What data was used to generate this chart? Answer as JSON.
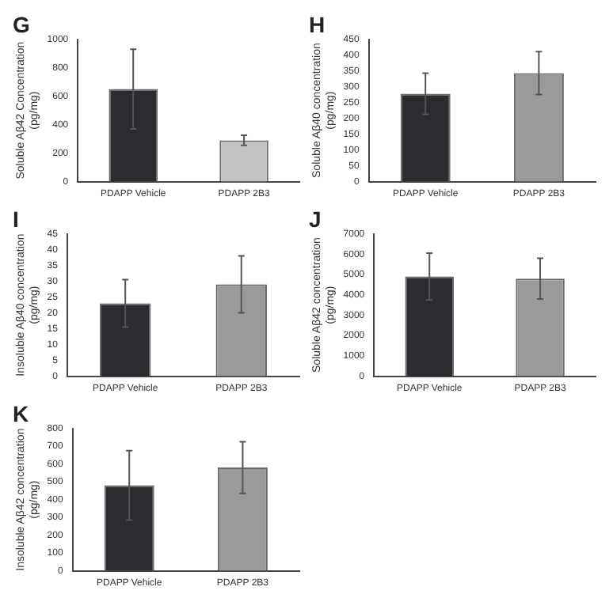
{
  "chart_data": [
    {
      "type": "bar",
      "title": "G",
      "ylabel": "Soluble Aβ42 Concentration (pg/mg)",
      "categories": [
        "PDAPP Vehicle",
        "PDAPP 2B3"
      ],
      "values": [
        650,
        290
      ],
      "errors": [
        280,
        35
      ],
      "colors": [
        "#2b2b30",
        "#c3c3c3"
      ],
      "ylim": [
        0,
        1000
      ],
      "yticks": [
        0,
        200,
        400,
        600,
        800,
        1000
      ],
      "grid": false,
      "legend": false
    },
    {
      "type": "bar",
      "title": "H",
      "ylabel": "Soluble Aβ40 concentration (pg/mg)",
      "categories": [
        "PDAPP Vehicle",
        "PDAPP 2B3"
      ],
      "values": [
        278,
        343
      ],
      "errors": [
        65,
        68
      ],
      "colors": [
        "#2b2b30",
        "#9a9a9a"
      ],
      "ylim": [
        0,
        450
      ],
      "yticks": [
        0,
        50,
        100,
        150,
        200,
        250,
        300,
        350,
        400,
        450
      ],
      "grid": false,
      "legend": false
    },
    {
      "type": "bar",
      "title": "I",
      "ylabel": "Insoluble Aβ40 concentration (pg/mg)",
      "categories": [
        "PDAPP Vehicle",
        "PDAPP 2B3"
      ],
      "values": [
        23,
        29
      ],
      "errors": [
        7.5,
        9
      ],
      "colors": [
        "#2b2b30",
        "#9a9a9a"
      ],
      "ylim": [
        0,
        45
      ],
      "yticks": [
        0,
        5,
        10,
        15,
        20,
        25,
        30,
        35,
        40,
        45
      ],
      "grid": false,
      "legend": false
    },
    {
      "type": "bar",
      "title": "J",
      "ylabel": "Soluble Aβ42 concentration (pg/mg)",
      "categories": [
        "PDAPP Vehicle",
        "PDAPP 2B3"
      ],
      "values": [
        4900,
        4800
      ],
      "errors": [
        1150,
        1000
      ],
      "colors": [
        "#2b2b30",
        "#9a9a9a"
      ],
      "ylim": [
        0,
        7000
      ],
      "yticks": [
        0,
        1000,
        2000,
        3000,
        4000,
        5000,
        6000,
        7000
      ],
      "grid": false,
      "legend": false
    },
    {
      "type": "bar",
      "title": "K",
      "ylabel": "Insoluble Aβ42 concentration (pg/mg)",
      "categories": [
        "PDAPP Vehicle",
        "PDAPP 2B3"
      ],
      "values": [
        480,
        580
      ],
      "errors": [
        195,
        145
      ],
      "colors": [
        "#2b2b30",
        "#9a9a9a"
      ],
      "ylim": [
        0,
        800
      ],
      "yticks": [
        0,
        100,
        200,
        300,
        400,
        500,
        600,
        700,
        800
      ],
      "grid": false,
      "legend": false
    }
  ]
}
